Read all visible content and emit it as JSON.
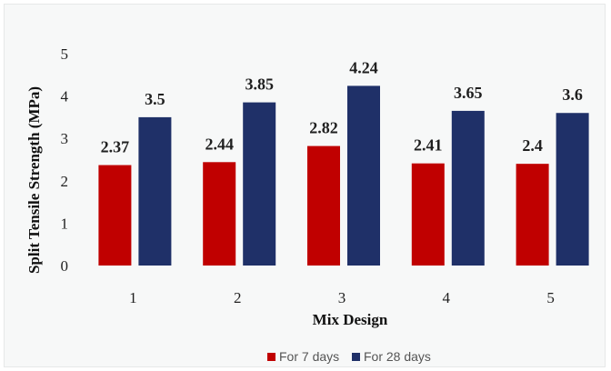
{
  "chart_data": {
    "type": "bar",
    "categories": [
      "1",
      "2",
      "3",
      "4",
      "5"
    ],
    "series": [
      {
        "name": "For 7 days",
        "values": [
          2.37,
          2.44,
          2.82,
          2.41,
          2.4
        ],
        "labels": [
          "2.37",
          "2.44",
          "2.82",
          "2.41",
          "2.4"
        ],
        "color": "#c00000"
      },
      {
        "name": "For 28 days",
        "values": [
          3.5,
          3.85,
          4.24,
          3.65,
          3.6
        ],
        "labels": [
          "3.5",
          "3.85",
          "4.24",
          "3.65",
          "3.6"
        ],
        "color": "#1f3068"
      }
    ],
    "xlabel": "Mix Design",
    "ylabel": "Split Tensile Strength (MPa)",
    "ylim": [
      0,
      5
    ],
    "yticks": [
      "0",
      "1",
      "2",
      "3",
      "4",
      "5"
    ],
    "grid": false,
    "legend_position": "bottom"
  }
}
